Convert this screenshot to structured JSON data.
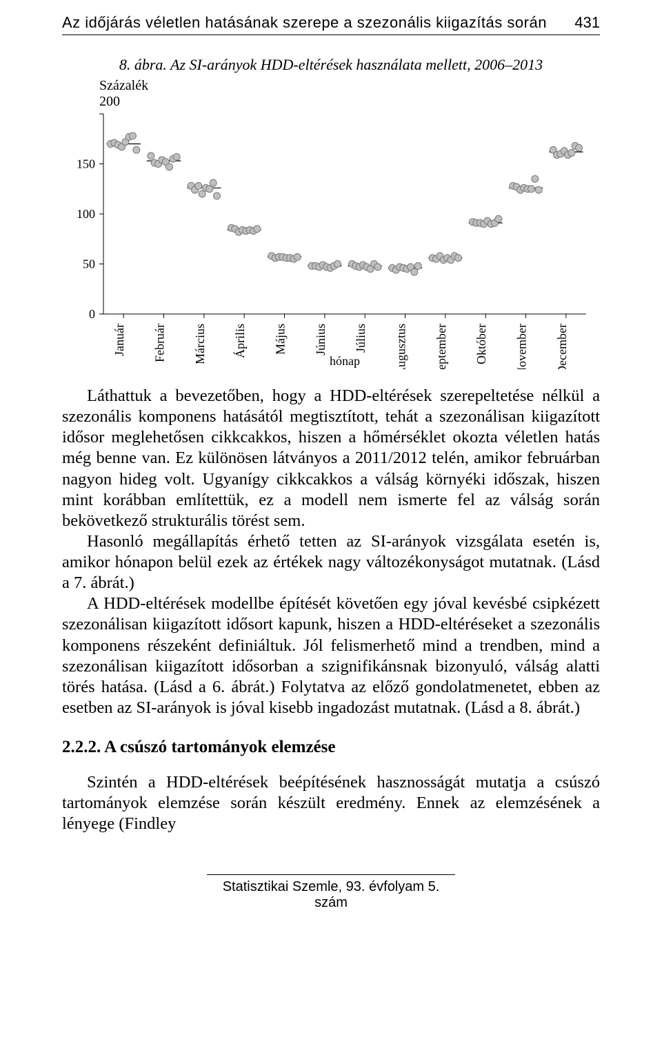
{
  "header": {
    "running_title": "Az időjárás véletlen hatásának szerepe a szezonális kiigazítás során",
    "page_number": "431"
  },
  "figure": {
    "caption": "8. ábra. Az SI-arányok HDD-eltérések használata mellett, 2006–2013",
    "y_axis_title": "Százalék",
    "x_axis_title": "hónap",
    "type": "scatter",
    "ylim": [
      0,
      200
    ],
    "ytick_step": 50,
    "yticks": [
      0,
      50,
      100,
      150,
      200
    ],
    "categories": [
      "Január",
      "Február",
      "Március",
      "Április",
      "Május",
      "Június",
      "Július",
      "Augusztus",
      "Szeptember",
      "Október",
      "November",
      "December"
    ],
    "series_values": [
      [
        170,
        171,
        169,
        167,
        172,
        177,
        178,
        164
      ],
      [
        158,
        151,
        150,
        154,
        152,
        147,
        155,
        157
      ],
      [
        128,
        124,
        128,
        120,
        126,
        125,
        131,
        118
      ],
      [
        86,
        85,
        82,
        84,
        83,
        84,
        83,
        85
      ],
      [
        58,
        56,
        57,
        57,
        56,
        56,
        55,
        57
      ],
      [
        48,
        48,
        47,
        49,
        47,
        46,
        48,
        50
      ],
      [
        50,
        48,
        47,
        49,
        47,
        45,
        50,
        47
      ],
      [
        46,
        44,
        47,
        46,
        45,
        47,
        42,
        48
      ],
      [
        56,
        55,
        58,
        54,
        56,
        54,
        58,
        56
      ],
      [
        92,
        91,
        91,
        90,
        93,
        90,
        91,
        95
      ],
      [
        128,
        127,
        124,
        126,
        125,
        125,
        135,
        124
      ],
      [
        164,
        159,
        160,
        163,
        159,
        161,
        168,
        166
      ]
    ],
    "median_values": [
      170,
      153,
      126,
      84,
      57,
      48,
      48,
      46,
      56,
      91,
      126,
      162
    ],
    "point_fill": "#bfbfbf",
    "point_stroke": "#7a7a7a",
    "point_radius": 5,
    "background_color": "#ffffff",
    "axis_color": "#000000",
    "label_fontsize": 18
  },
  "body": {
    "p1": "Láthattuk a bevezetőben, hogy a HDD-eltérések szerepeltetése nélkül a szezonális komponens hatásától megtisztított, tehát a szezonálisan kiigazított idősor meglehetősen cikkcakkos, hiszen a hőmérséklet okozta véletlen hatás még benne van. Ez különösen látványos a 2011/2012 telén, amikor februárban nagyon hideg volt. Ugyanígy cikkcakkos a válság környéki időszak, hiszen mint korábban említettük, ez a modell nem ismerte fel az válság során bekövetkező strukturális törést sem.",
    "p2": "Hasonló megállapítás érhető tetten az SI-arányok vizsgálata esetén is, amikor hónapon belül ezek az értékek nagy változékonyságot mutatnak. (Lásd a 7. ábrát.)",
    "p3": "A HDD-eltérések modellbe építését követően egy jóval kevésbé csipkézett szezonálisan kiigazított idősort kapunk, hiszen a HDD-eltéréseket a szezonális komponens részeként definiáltuk. Jól felismerhető mind a trendben, mind a szezonálisan kiigazított idősorban a szignifikánsnak bizonyuló, válság alatti törés hatása. (Lásd a 6. ábrát.) Folytatva az előző gondolatmenetet, ebben az esetben az SI-arányok is jóval kisebb ingadozást mutatnak. (Lásd a 8. ábrát.)",
    "section_heading": "2.2.2. A csúszó tartományok elemzése",
    "p4": "Szintén a HDD-eltérések beépítésének hasznosságát mutatja a csúszó tartományok elemzése során készült eredmény. Ennek az elemzésének a lényege (Findley"
  },
  "footer": {
    "text": "Statisztikai Szemle, 93. évfolyam 5. szám"
  }
}
